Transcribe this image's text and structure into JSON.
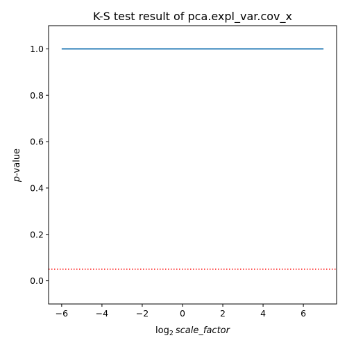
{
  "chart_data": {
    "type": "line",
    "title": "K-S test result of pca.expl_var.cov_x",
    "xlabel": {
      "prefix": "log",
      "subscript": "2",
      "italic": "scale_factor"
    },
    "ylabel": {
      "italic": "p",
      "rest": "-value"
    },
    "xlim": [
      -6.65,
      7.65
    ],
    "ylim": [
      -0.1,
      1.1
    ],
    "xticks": [
      -6,
      -4,
      -2,
      0,
      2,
      4,
      6
    ],
    "xtick_labels": [
      "−6",
      "−4",
      "−2",
      "0",
      "2",
      "4",
      "6"
    ],
    "yticks": [
      0.0,
      0.2,
      0.4,
      0.6,
      0.8,
      1.0
    ],
    "ytick_labels": [
      "0.0",
      "0.2",
      "0.4",
      "0.6",
      "0.8",
      "1.0"
    ],
    "grid": false,
    "series": [
      {
        "style": "solid",
        "color": "#1f77b4",
        "x": [
          -6,
          -5,
          -4,
          -3,
          -2,
          -1,
          0,
          1,
          2,
          3,
          4,
          5,
          6,
          7
        ],
        "y": [
          1.0,
          1.0,
          1.0,
          1.0,
          1.0,
          1.0,
          1.0,
          1.0,
          1.0,
          1.0,
          1.0,
          1.0,
          1.0,
          1.0
        ]
      }
    ],
    "reference_lines": [
      {
        "orientation": "horizontal",
        "y": 0.05,
        "style": "dotted",
        "color": "#ff0000"
      }
    ]
  }
}
